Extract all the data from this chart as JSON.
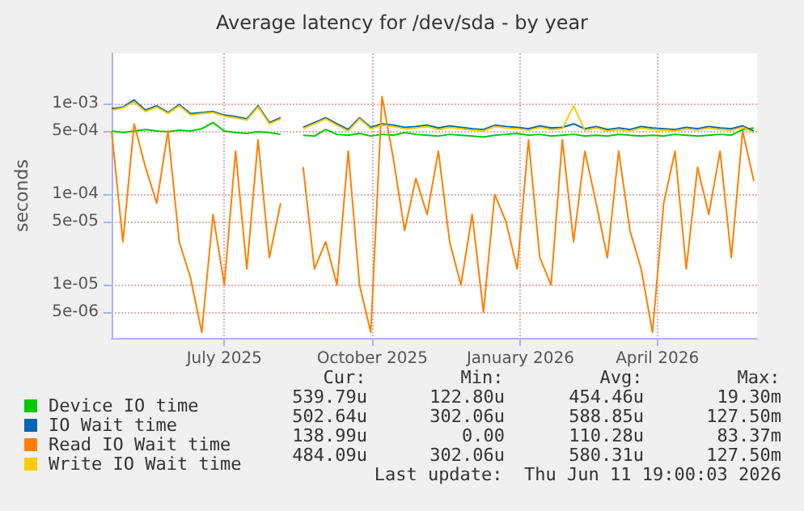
{
  "chart_data": {
    "type": "line",
    "title": "Average latency for /dev/sda - by year",
    "ylabel": "seconds",
    "log": "y",
    "grid": true,
    "legend": "bottom",
    "marker": "none",
    "line_style": "solid",
    "xlim": [
      "2025-05-06",
      "2026-06-11"
    ],
    "xticks": [
      {
        "value": "2025-07-15",
        "label": "July 2025"
      },
      {
        "value": "2025-10-15",
        "label": "October 2025"
      },
      {
        "value": "2026-01-15",
        "label": "January 2026"
      },
      {
        "value": "2026-04-10",
        "label": "April 2026"
      }
    ],
    "ylim": [
      2.6e-06,
      0.0036
    ],
    "yticks": [
      {
        "value": 5e-06,
        "label": "5e-06"
      },
      {
        "value": 1e-05,
        "label": "1e-05"
      },
      {
        "value": 5e-05,
        "label": "5e-05"
      },
      {
        "value": 0.0001,
        "label": "1e-04"
      },
      {
        "value": 0.0005,
        "label": "5e-04"
      },
      {
        "value": 0.001,
        "label": "1e-03"
      }
    ],
    "x": [
      "2025-05-06",
      "2025-05-13",
      "2025-05-20",
      "2025-05-27",
      "2025-06-03",
      "2025-06-10",
      "2025-06-17",
      "2025-06-24",
      "2025-07-01",
      "2025-07-08",
      "2025-07-15",
      "2025-07-22",
      "2025-07-29",
      "2025-08-05",
      "2025-08-12",
      "2025-08-19",
      "2025-08-26",
      "2025-09-02",
      "2025-09-09",
      "2025-09-16",
      "2025-09-23",
      "2025-09-30",
      "2025-10-07",
      "2025-10-14",
      "2025-10-21",
      "2025-10-28",
      "2025-11-04",
      "2025-11-11",
      "2025-11-18",
      "2025-11-25",
      "2025-12-02",
      "2025-12-09",
      "2025-12-16",
      "2025-12-23",
      "2025-12-30",
      "2026-01-06",
      "2026-01-13",
      "2026-01-20",
      "2026-01-27",
      "2026-02-03",
      "2026-02-10",
      "2026-02-17",
      "2026-02-24",
      "2026-03-03",
      "2026-03-10",
      "2026-03-17",
      "2026-03-24",
      "2026-03-31",
      "2026-04-07",
      "2026-04-14",
      "2026-04-21",
      "2026-04-28",
      "2026-05-05",
      "2026-05-12",
      "2026-05-19",
      "2026-05-26",
      "2026-06-02",
      "2026-06-09"
    ],
    "series": [
      {
        "name": "Device IO time",
        "color": "#00cc00",
        "values": [
          0.0005,
          0.00048,
          0.0005,
          0.00052,
          0.0005,
          0.00049,
          0.00051,
          0.0005,
          0.00053,
          0.00062,
          0.0005,
          0.00048,
          0.00047,
          0.00049,
          0.00048,
          0.00046,
          null,
          0.00045,
          0.00044,
          0.00052,
          0.00046,
          0.00045,
          0.00047,
          0.00044,
          0.00046,
          0.00045,
          0.00048,
          0.00046,
          0.00045,
          0.00044,
          0.00046,
          0.00045,
          0.00044,
          0.00043,
          0.00045,
          0.00046,
          0.00047,
          0.00045,
          0.00046,
          0.00044,
          0.00045,
          0.00046,
          0.00044,
          0.00045,
          0.00044,
          0.00046,
          0.00045,
          0.00044,
          0.00045,
          0.00044,
          0.00046,
          0.00045,
          0.00044,
          0.00045,
          0.00046,
          0.00045,
          0.00052,
          0.00054
        ]
      },
      {
        "name": "IO Wait time",
        "color": "#0066b3",
        "values": [
          0.00088,
          0.00092,
          0.0011,
          0.00085,
          0.00095,
          0.0008,
          0.00098,
          0.00078,
          0.0008,
          0.00082,
          0.00075,
          0.00072,
          0.00068,
          0.00095,
          0.00062,
          0.0007,
          null,
          0.00055,
          0.00062,
          0.0007,
          0.0006,
          0.00052,
          0.0007,
          0.00055,
          0.0006,
          0.00058,
          0.00055,
          0.00056,
          0.00058,
          0.00054,
          0.00057,
          0.00055,
          0.00053,
          0.00052,
          0.00058,
          0.00056,
          0.00055,
          0.00053,
          0.00057,
          0.00054,
          0.00055,
          0.0006,
          0.00053,
          0.00056,
          0.00052,
          0.00054,
          0.00052,
          0.00056,
          0.00054,
          0.00053,
          0.00052,
          0.00055,
          0.00053,
          0.00056,
          0.00054,
          0.00053,
          0.00057,
          0.0005
        ]
      },
      {
        "name": "Read IO Wait time",
        "color": "#ff8000",
        "values": [
          0.0005,
          3e-05,
          0.0006,
          0.0002,
          8e-05,
          0.0005,
          3e-05,
          1.2e-05,
          3e-06,
          6e-05,
          1e-05,
          0.0003,
          1.5e-05,
          0.0004,
          2e-05,
          8e-05,
          null,
          0.0002,
          1.5e-05,
          3e-05,
          1e-05,
          0.0003,
          1e-05,
          3e-06,
          0.0012,
          0.00025,
          4e-05,
          0.00015,
          6e-05,
          0.0003,
          3e-05,
          1e-05,
          6e-05,
          5e-06,
          0.0001,
          5e-05,
          1.5e-05,
          0.0004,
          2e-05,
          1e-05,
          0.0004,
          3e-05,
          0.0003,
          8e-05,
          2e-05,
          0.0003,
          4e-05,
          1.5e-05,
          3e-06,
          8e-05,
          0.0003,
          1.5e-05,
          0.0002,
          6e-05,
          0.0003,
          2e-05,
          0.0005,
          0.00014
        ]
      },
      {
        "name": "Write IO Wait time",
        "color": "#ffcc00",
        "values": [
          0.00085,
          0.0009,
          0.00105,
          0.00082,
          0.00092,
          0.00078,
          0.00095,
          0.00075,
          0.00078,
          0.0008,
          0.00073,
          0.0007,
          0.00066,
          0.00092,
          0.0006,
          0.00068,
          null,
          0.00053,
          0.0006,
          0.00068,
          0.00058,
          0.0005,
          0.00068,
          0.00053,
          0.00058,
          0.00056,
          0.00053,
          0.00054,
          0.00056,
          0.00052,
          0.00055,
          0.00053,
          0.00051,
          0.0005,
          0.00056,
          0.00054,
          0.00053,
          0.00051,
          0.00055,
          0.00052,
          0.00053,
          0.00095,
          0.00051,
          0.00054,
          0.0005,
          0.00052,
          0.0005,
          0.00054,
          0.00052,
          0.00051,
          0.0005,
          0.00053,
          0.00051,
          0.00054,
          0.00052,
          0.00051,
          0.00055,
          0.00048
        ]
      }
    ],
    "annotations": [
      "Cur:",
      "Min:",
      "Avg:",
      "Max:",
      "539.79u",
      "122.80u",
      "454.46u",
      "19.30m",
      "502.64u",
      "302.06u",
      "588.85u",
      "127.50m",
      "138.99u",
      "0.00",
      "110.28u",
      "83.37m",
      "484.09u",
      "302.06u",
      "580.31u",
      "127.50m",
      "Last update:  Thu Jun 11 19:00:03 2026"
    ]
  }
}
